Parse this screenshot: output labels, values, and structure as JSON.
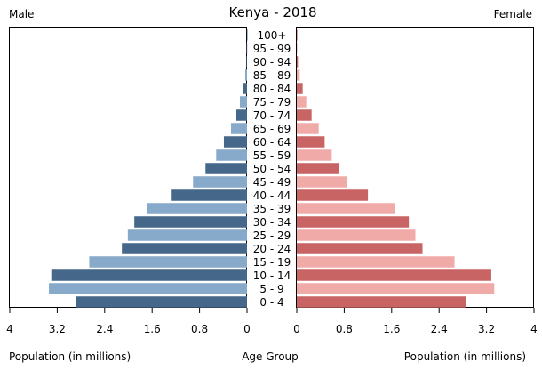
{
  "chart_data": {
    "type": "bar",
    "title": "Kenya - 2018",
    "left_header": "Male",
    "right_header": "Female",
    "xlabel_left": "Population (in millions)",
    "xlabel_center": "Age Group",
    "xlabel_right": "Population (in millions)",
    "xlim": [
      0,
      4
    ],
    "x_ticks": [
      0,
      0.8,
      1.6,
      2.4,
      3.2,
      4
    ],
    "x_tick_labels_male": [
      "4",
      "3.2",
      "2.4",
      "1.6",
      "0.8",
      "0"
    ],
    "x_tick_labels_female": [
      "0",
      "0.8",
      "1.6",
      "2.4",
      "3.2",
      "4"
    ],
    "categories": [
      "0 - 4",
      "5 - 9",
      "10 - 14",
      "15 - 19",
      "20 - 24",
      "25 - 29",
      "30 - 34",
      "35 - 39",
      "40 - 44",
      "45 - 49",
      "50 - 54",
      "55 - 59",
      "60 - 64",
      "65 - 69",
      "70 - 74",
      "75 - 79",
      "80 - 84",
      "85 - 89",
      "90 - 94",
      "95 - 99",
      "100+"
    ],
    "series": [
      {
        "name": "Male",
        "values": [
          2.89,
          3.34,
          3.3,
          2.66,
          2.11,
          2.01,
          1.9,
          1.68,
          1.27,
          0.91,
          0.7,
          0.52,
          0.39,
          0.27,
          0.18,
          0.12,
          0.06,
          0.03,
          0.01,
          0.005,
          0.002
        ],
        "colors": [
          "#44678a",
          "#87a9ca"
        ]
      },
      {
        "name": "Female",
        "values": [
          2.86,
          3.33,
          3.28,
          2.66,
          2.12,
          2.0,
          1.89,
          1.66,
          1.2,
          0.85,
          0.71,
          0.59,
          0.47,
          0.37,
          0.25,
          0.16,
          0.1,
          0.05,
          0.02,
          0.006,
          0.002
        ],
        "colors": [
          "#c86464",
          "#f0aaa8"
        ]
      }
    ]
  }
}
